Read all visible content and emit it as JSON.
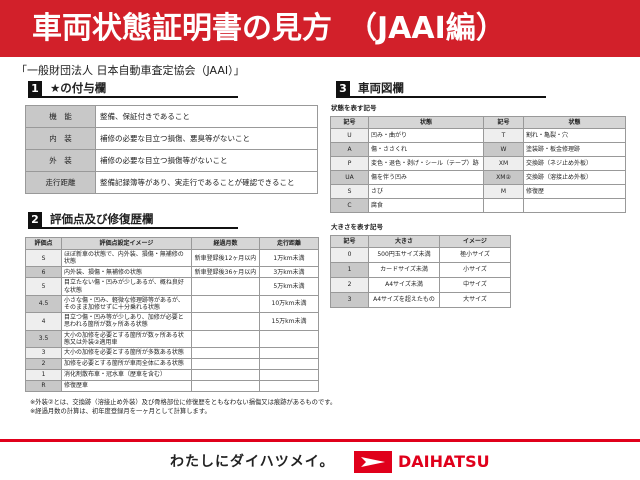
{
  "title": "車両状態証明書の見方　（JAAI編）",
  "organization": "「一般財団法人 日本自動車査定協会（JAAI）」",
  "section1": {
    "num": "1",
    "title": "★の付与欄",
    "rows": [
      {
        "label": "機　能",
        "text": "整備、保証付きであること"
      },
      {
        "label": "内　装",
        "text": "補修の必要な目立つ損傷、悪臭等がないこと"
      },
      {
        "label": "外　装",
        "text": "補修の必要な目立つ損傷等がないこと"
      },
      {
        "label": "走行距離",
        "text": "整備記録簿等があり、実走行であることが確認できること"
      }
    ]
  },
  "section2": {
    "num": "2",
    "title": "評価点及び修復歴欄",
    "headers": [
      "評価点",
      "評価点設定イメージ",
      "経過月数",
      "走行距離"
    ],
    "rows": [
      [
        "S",
        "ほぼ新車の状態で、内外装、損傷・無補修の状態",
        "新車登録後12ヶ月以内",
        "1万km未満"
      ],
      [
        "6",
        "内外装、損傷・無補修の状態",
        "新車登録後36ヶ月以内",
        "3万km未満"
      ],
      [
        "5",
        "目立たない傷・凹みが少しあるが、概ね良好な状態",
        "",
        "5万km未満"
      ],
      [
        "4.5",
        "小さな傷・凹み、軽微な修理跡等があるが、そのまま加修せずに十分乗れる状態",
        "",
        "10万km未満"
      ],
      [
        "4",
        "目立つ傷・凹み等が少しあり、加修が必要と思われる箇所が数ヶ所ある状態",
        "",
        "15万km未満"
      ],
      [
        "3.5",
        "大小の加修を必要とする箇所が数ヶ所ある状態又は外装②適用車",
        "",
        ""
      ],
      [
        "3",
        "大小の加修を必要とする箇所が多数ある状態",
        "",
        ""
      ],
      [
        "2",
        "加修を必要とする箇所が車両全体にある状態",
        "",
        ""
      ],
      [
        "1",
        "消化剤散布車・冠水車（歴車を含む）",
        "",
        ""
      ],
      [
        "R",
        "修復歴車",
        "",
        ""
      ]
    ],
    "notes": [
      "※外装②とは、交換跡（溶接止め外装）及び骨格部位に修復歴をともなわない損傷又は痕跡があるものです。",
      "※経過月数の計算は、初年度登録月を一ヶ月として計算します。"
    ]
  },
  "section3": {
    "num": "3",
    "title": "車両図欄",
    "condition_label": "状態を表す記号",
    "condition_headers": [
      "記号",
      "状態",
      "記号",
      "状態"
    ],
    "condition_rows": [
      [
        "U",
        "凹み・曲がり",
        "T",
        "割れ・亀裂・穴"
      ],
      [
        "A",
        "傷・ささくれ",
        "W",
        "塗装跡・板金修理跡"
      ],
      [
        "P",
        "変色・退色・剥げ・シール（テープ）跡",
        "XM",
        "交換跡（ネジ止め外板）"
      ],
      [
        "UA",
        "傷を伴う凹み",
        "XM②",
        "交換跡（溶接止め外板）"
      ],
      [
        "S",
        "さび",
        "M",
        "修復歴"
      ],
      [
        "C",
        "腐食",
        "",
        ""
      ]
    ],
    "size_label": "大きさを表す記号",
    "size_headers": [
      "記号",
      "大きさ",
      "イメージ"
    ],
    "size_rows": [
      [
        "0",
        "500円玉サイズ未満",
        "極小サイズ"
      ],
      [
        "1",
        "カードサイズ未満",
        "小サイズ"
      ],
      [
        "2",
        "A4サイズ未満",
        "中サイズ"
      ],
      [
        "3",
        "A4サイズを超えたもの",
        "大サイズ"
      ]
    ]
  },
  "footer": {
    "slogan": "わたしにダイハツメイ。",
    "brand": "DAIHATSU",
    "brand_color": "#e0001b"
  }
}
